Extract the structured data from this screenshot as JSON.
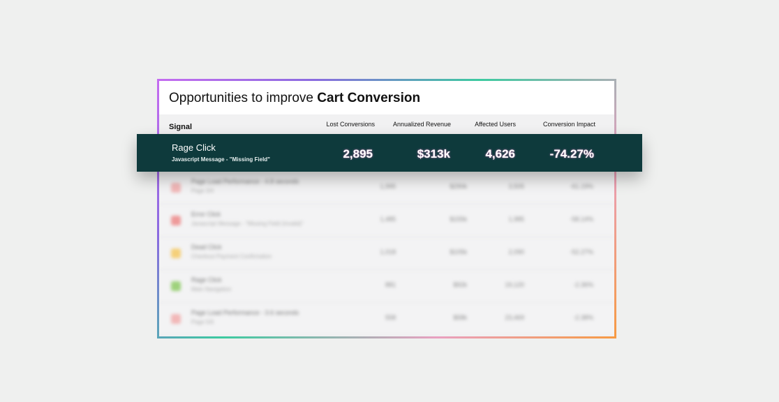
{
  "card": {
    "title_prefix": "Opportunities to improve",
    "title_bold": "Cart Conversion"
  },
  "table": {
    "columns": {
      "signal": "Signal",
      "lost_conversions": "Lost Conversions",
      "annualized_revenue": "Annualized Revenue",
      "affected_users": "Affected Users",
      "conversion_impact": "Conversion Impact"
    },
    "highlight": {
      "name": "Rage Click",
      "detail": "Javascript  Message - \"Missing Field\"",
      "lost_conversions": "2,895",
      "annualized_revenue": "$313k",
      "affected_users": "4,626",
      "conversion_impact": "-74.27%"
    },
    "blurred_rows": [
      {
        "icon_color": "#f2b8b8",
        "name": "Page Load Performance - 4.8 seconds",
        "detail": "Page 3/4",
        "lost_conversions": "1,995",
        "annualized_revenue": "$290k",
        "affected_users": "3,505",
        "conversion_impact": "-61.19%"
      },
      {
        "icon_color": "#ee9a9a",
        "name": "Error Click",
        "detail": "Javascript Message - \"Missing Field (Invalid)\"",
        "lost_conversions": "1,485",
        "annualized_revenue": "$155k",
        "affected_users": "1,985",
        "conversion_impact": "-58.14%"
      },
      {
        "icon_color": "#f5d07a",
        "name": "Dead Click",
        "detail": "Checkout Payment Confirmation",
        "lost_conversions": "1,018",
        "annualized_revenue": "$105k",
        "affected_users": "2,090",
        "conversion_impact": "-52.27%"
      },
      {
        "icon_color": "#9ed27c",
        "name": "Rage Click",
        "detail": "Main Navigation",
        "lost_conversions": "881",
        "annualized_revenue": "$92k",
        "affected_users": "19,120",
        "conversion_impact": "-2.36%"
      },
      {
        "icon_color": "#f2b8b8",
        "name": "Page Load Performance - 3.6 seconds",
        "detail": "Page 5/6",
        "lost_conversions": "558",
        "annualized_revenue": "$58k",
        "affected_users": "23,469",
        "conversion_impact": "-2.38%"
      }
    ]
  },
  "colors": {
    "highlight_bg": "#0e3a3c",
    "page_bg": "#eff0ef"
  }
}
